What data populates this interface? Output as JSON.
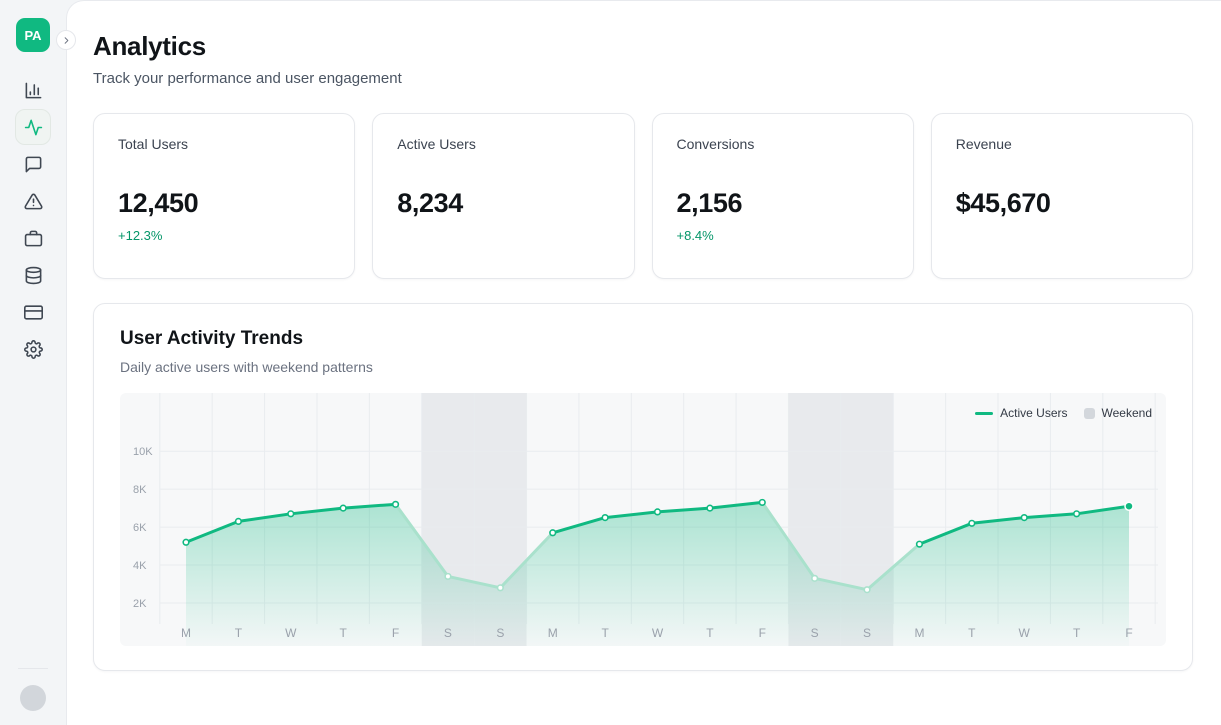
{
  "colors": {
    "accent_green": "#10b981",
    "positive_green": "#059669",
    "line": "#10b981",
    "line_weekend": "#a9e1cc",
    "area_top": "rgba(16,185,129,0.33)",
    "area_bottom": "rgba(16,185,129,0.02)",
    "weekend_band": "#e8eaed",
    "plot_bg": "#f7f8f9",
    "grid": "#e9ecef",
    "axis_text": "#9aa1ab",
    "weekend_swatch": "#d3d7dc"
  },
  "sidebar": {
    "logo_text": "PA",
    "items": [
      {
        "icon": "bar-chart",
        "active": false
      },
      {
        "icon": "activity",
        "active": true
      },
      {
        "icon": "message-square",
        "active": false
      },
      {
        "icon": "alert-triangle",
        "active": false
      },
      {
        "icon": "briefcase",
        "active": false
      },
      {
        "icon": "database",
        "active": false
      },
      {
        "icon": "credit-card",
        "active": false
      },
      {
        "icon": "settings",
        "active": false
      }
    ]
  },
  "header": {
    "title": "Analytics",
    "subtitle": "Track your performance and user engagement"
  },
  "stats": [
    {
      "label": "Total Users",
      "value": "12,450",
      "change": "+12.3%"
    },
    {
      "label": "Active Users",
      "value": "8,234",
      "change": ""
    },
    {
      "label": "Conversions",
      "value": "2,156",
      "change": "+8.4%"
    },
    {
      "label": "Revenue",
      "value": "$45,670",
      "change": ""
    }
  ],
  "chart_section": {
    "title": "User Activity Trends",
    "subtitle": "Daily active users with weekend patterns"
  },
  "chart_data": {
    "type": "area",
    "title": "User Activity Trends",
    "x": [
      "M",
      "T",
      "W",
      "T",
      "F",
      "S",
      "S",
      "M",
      "T",
      "W",
      "T",
      "F",
      "S",
      "S",
      "M",
      "T",
      "W",
      "T",
      "F"
    ],
    "series": [
      {
        "name": "Active Users",
        "values": [
          5200,
          6300,
          6700,
          7000,
          7200,
          3400,
          2800,
          5700,
          6500,
          6800,
          7000,
          7300,
          3300,
          2700,
          5100,
          6200,
          6500,
          6700,
          7100
        ]
      }
    ],
    "weekend_indices": [
      5,
      6,
      12,
      13
    ],
    "y_tick_labels": [
      "2K",
      "4K",
      "6K",
      "8K",
      "10K"
    ],
    "y_tick_values": [
      2000,
      4000,
      6000,
      8000,
      10000
    ],
    "ylim": [
      0,
      11000
    ],
    "legend": [
      "Active Users",
      "Weekend"
    ],
    "legend_position": "top-right",
    "xlabel": "",
    "ylabel": ""
  }
}
